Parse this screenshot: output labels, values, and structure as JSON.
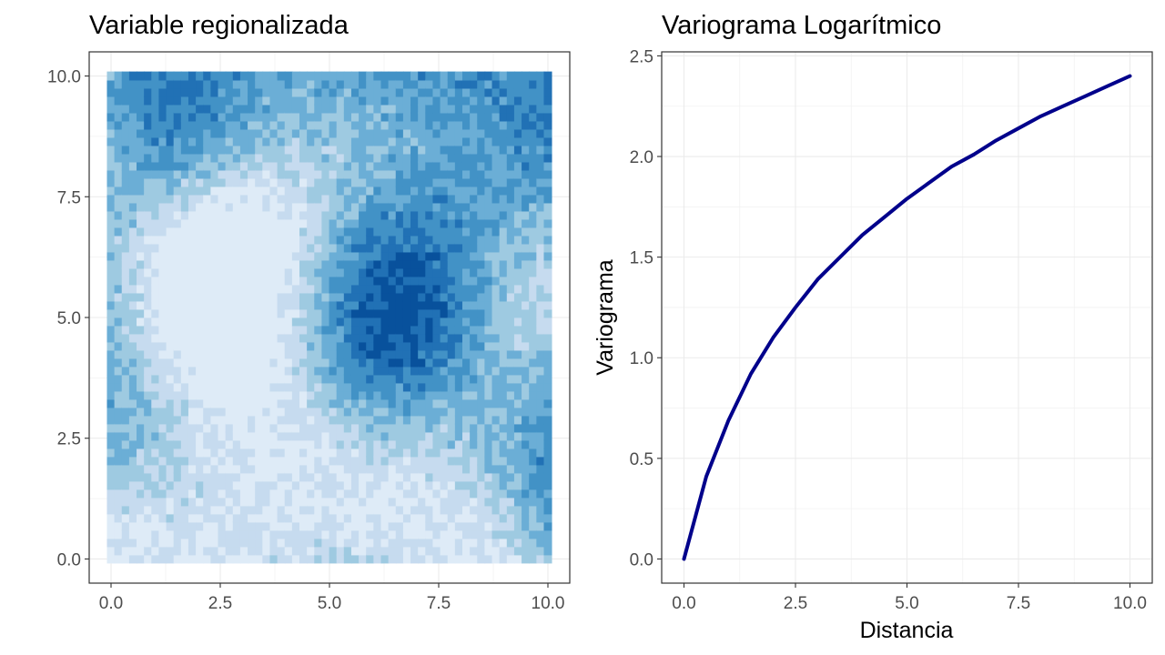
{
  "chart_data": [
    {
      "type": "heatmap",
      "title": "Variable regionalizada",
      "xlabel": "",
      "ylabel": "",
      "xlim": [
        -0.5,
        10.5
      ],
      "ylim": [
        -0.5,
        10.5
      ],
      "x_ticks": [
        "0.0",
        "2.5",
        "5.0",
        "7.5",
        "10.0"
      ],
      "y_ticks": [
        "0.0",
        "2.5",
        "5.0",
        "7.5",
        "10.0"
      ],
      "grid": true,
      "colors": [
        "#deebf7",
        "#c6dbef",
        "#9ecae1",
        "#6baed6",
        "#4292c6",
        "#2171b5",
        "#08519c"
      ]
    },
    {
      "type": "line",
      "title": "Variograma Logarítmico",
      "xlabel": "Distancia",
      "ylabel": "Variograma",
      "xlim": [
        -0.5,
        10.5
      ],
      "ylim": [
        -0.12,
        2.52
      ],
      "x_ticks": [
        "0.0",
        "2.5",
        "5.0",
        "7.5",
        "10.0"
      ],
      "y_ticks": [
        "0.0",
        "0.5",
        "1.0",
        "1.5",
        "2.0",
        "2.5"
      ],
      "grid": true,
      "line_color": "#00008b",
      "series": [
        {
          "x": [
            0,
            0.5,
            1,
            1.5,
            2,
            2.5,
            3,
            3.5,
            4,
            4.5,
            5,
            5.5,
            6,
            6.5,
            7,
            7.5,
            8,
            8.5,
            9,
            9.5,
            10
          ],
          "y": [
            0,
            0.41,
            0.69,
            0.92,
            1.1,
            1.25,
            1.39,
            1.5,
            1.61,
            1.7,
            1.79,
            1.87,
            1.95,
            2.01,
            2.08,
            2.14,
            2.2,
            2.25,
            2.3,
            2.35,
            2.4
          ]
        }
      ]
    }
  ]
}
